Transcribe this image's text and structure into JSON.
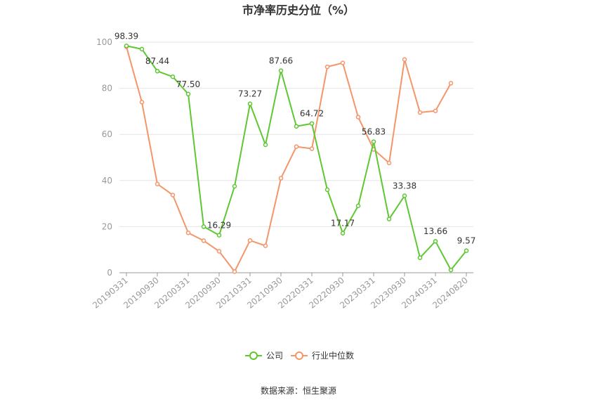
{
  "chart_data": {
    "type": "line",
    "title": "市净率历史分位（%）",
    "source": "数据来源：恒生聚源",
    "x_tick_labels": [
      "20190331",
      "20190930",
      "20200331",
      "20200930",
      "20210331",
      "20210930",
      "20220331",
      "20220930",
      "20230331",
      "20230930",
      "20240331",
      "20240820"
    ],
    "x": [
      "20190331",
      "20190630",
      "20190930",
      "20191231",
      "20200331",
      "20200630",
      "20200930",
      "20201231",
      "20210331",
      "20210630",
      "20210930",
      "20211231",
      "20220331",
      "20220630",
      "20220930",
      "20221231",
      "20230331",
      "20230630",
      "20230930",
      "20231231",
      "20240331",
      "20240630",
      "20240820"
    ],
    "ylim": [
      0,
      100
    ],
    "y_ticks": [
      0,
      20,
      40,
      60,
      80,
      100
    ],
    "grid": true,
    "legend_position": "bottom",
    "series": [
      {
        "name": "公司",
        "color": "#5ec732",
        "values": [
          98.39,
          97.0,
          87.44,
          85.0,
          77.5,
          20.0,
          16.29,
          37.5,
          73.27,
          55.5,
          87.66,
          63.5,
          64.72,
          36.0,
          17.17,
          29.0,
          56.83,
          23.3,
          33.38,
          6.5,
          13.66,
          1.2,
          9.57
        ],
        "labels": {
          "0": "98.39",
          "2": "87.44",
          "4": "77.50",
          "6": "16.29",
          "8": "73.27",
          "10": "87.66",
          "12": "64.72",
          "14": "17.17",
          "16": "56.83",
          "18": "33.38",
          "20": "13.66",
          "22": "9.57"
        }
      },
      {
        "name": "行业中位数",
        "color": "#f5956a",
        "values": [
          98.0,
          74.0,
          38.5,
          33.7,
          17.3,
          13.9,
          9.3,
          0.5,
          14.0,
          11.7,
          41.0,
          54.7,
          53.8,
          89.3,
          91.0,
          67.5,
          53.5,
          47.6,
          92.5,
          69.5,
          70.2,
          82.2,
          null
        ]
      }
    ]
  }
}
